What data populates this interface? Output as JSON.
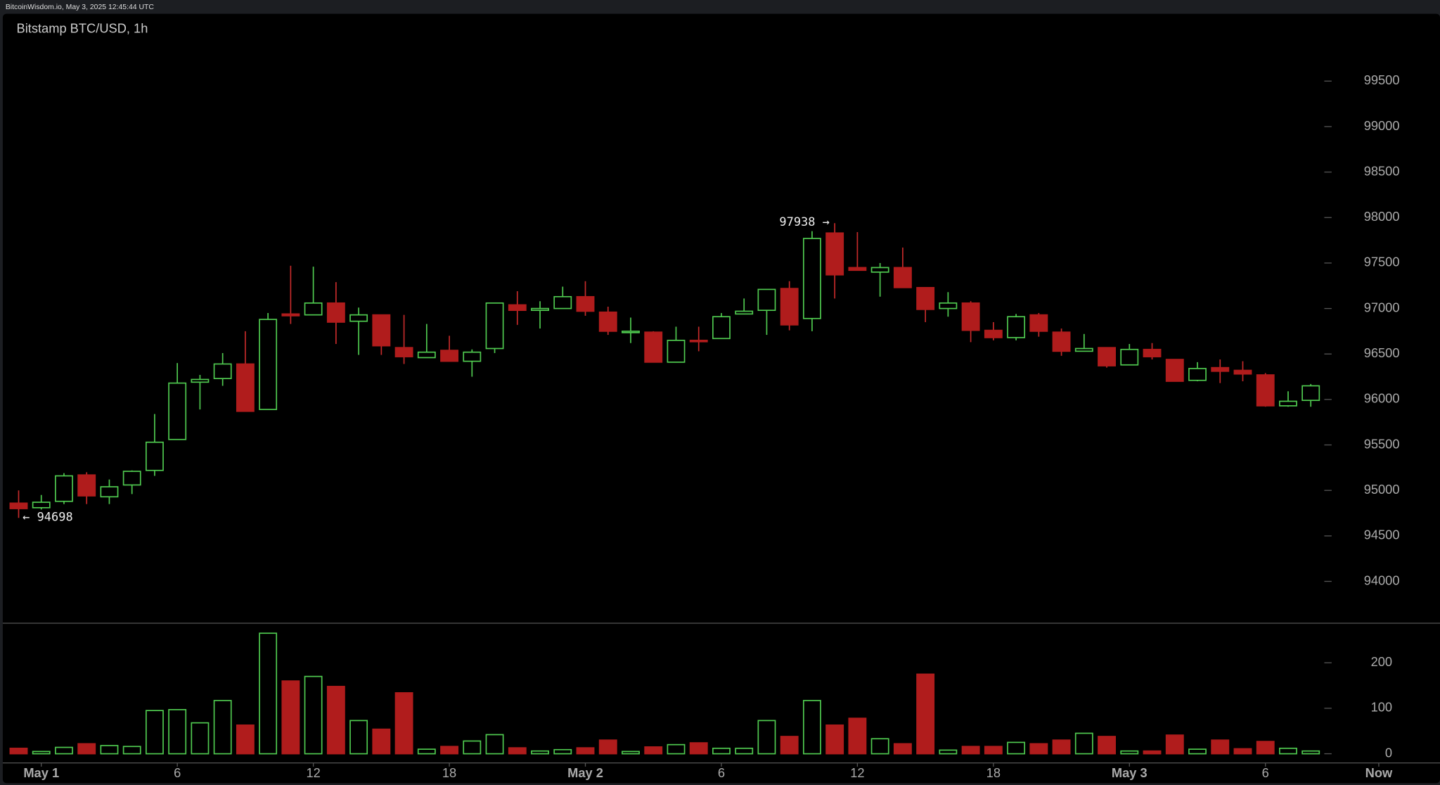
{
  "header": "BitcoinWisdom.io, May 3, 2025 12:45:44 UTC",
  "chart_data": {
    "type": "candlestick",
    "title": "Bitstamp BTC/USD, 1h",
    "up_color": "#4fc94f",
    "down_color": "#b01c1c",
    "annotations": [
      "97938 →",
      "← 94698"
    ],
    "x": [
      -1,
      0,
      1,
      2,
      3,
      4,
      5,
      6,
      7,
      8,
      9,
      10,
      11,
      12,
      13,
      14,
      15,
      16,
      17,
      18,
      19,
      20,
      21,
      22,
      23,
      24,
      25,
      26,
      27,
      28,
      29,
      30,
      31,
      32,
      33,
      34,
      35,
      36,
      37,
      38,
      39,
      40,
      41,
      42,
      43,
      44,
      45,
      46,
      47,
      48,
      49,
      50,
      51,
      52,
      53,
      54,
      55,
      56
    ],
    "open": [
      94860,
      94810,
      94880,
      95170,
      94930,
      95060,
      95220,
      95560,
      96190,
      96230,
      96390,
      95890,
      96940,
      96930,
      97060,
      96860,
      96930,
      96570,
      96460,
      96540,
      96420,
      96560,
      97040,
      96980,
      97000,
      97130,
      96960,
      96740,
      96740,
      96410,
      96650,
      96670,
      96940,
      96980,
      97220,
      96890,
      97830,
      97450,
      97400,
      97450,
      97230,
      97000,
      97060,
      96760,
      96680,
      96930,
      96740,
      96530,
      96570,
      96380,
      96550,
      96440,
      96210,
      96350,
      96320,
      96270,
      95930,
      95990
    ],
    "high": [
      95000,
      94950,
      95190,
      95200,
      95120,
      95220,
      95840,
      96400,
      96270,
      96510,
      96750,
      96950,
      97470,
      97460,
      97290,
      97010,
      96930,
      96930,
      96830,
      96700,
      96550,
      97060,
      97190,
      97080,
      97240,
      97300,
      97020,
      96900,
      96750,
      96800,
      96800,
      96950,
      97110,
      97210,
      97300,
      97850,
      97938,
      97840,
      97500,
      97670,
      97230,
      97180,
      97080,
      96850,
      96940,
      96950,
      96780,
      96720,
      96570,
      96610,
      96620,
      96440,
      96410,
      96440,
      96420,
      96290,
      96090,
      96170
    ],
    "low": [
      94698,
      94790,
      94850,
      94850,
      94850,
      94960,
      95160,
      95560,
      95890,
      96150,
      95870,
      95890,
      96830,
      96930,
      96610,
      96490,
      96490,
      96390,
      96460,
      96420,
      96250,
      96510,
      96820,
      96780,
      97000,
      96920,
      96710,
      96620,
      96410,
      96410,
      96530,
      96670,
      96940,
      96710,
      96760,
      96750,
      97110,
      97420,
      97130,
      97230,
      96850,
      96910,
      96630,
      96650,
      96650,
      96690,
      96480,
      96530,
      96350,
      96380,
      96440,
      96200,
      96200,
      96180,
      96200,
      95920,
      95920,
      95920
    ],
    "close": [
      94800,
      94870,
      95160,
      94940,
      95040,
      95210,
      95530,
      96180,
      96220,
      96390,
      95870,
      96880,
      96920,
      97060,
      96850,
      96930,
      96590,
      96470,
      96520,
      96420,
      96520,
      97060,
      96980,
      97000,
      97130,
      96970,
      96750,
      96750,
      96410,
      96650,
      96640,
      96910,
      96970,
      97210,
      96820,
      97770,
      97370,
      97420,
      97450,
      97230,
      96990,
      97060,
      96760,
      96680,
      96910,
      96750,
      96530,
      96560,
      96370,
      96550,
      96470,
      96200,
      96340,
      96310,
      96280,
      95930,
      95980,
      96150
    ],
    "volume": [
      12,
      5,
      14,
      22,
      18,
      16,
      95,
      97,
      68,
      117,
      63,
      265,
      160,
      170,
      148,
      73,
      54,
      134,
      10,
      16,
      28,
      42,
      13,
      6,
      9,
      13,
      30,
      5,
      15,
      20,
      24,
      12,
      12,
      73,
      38,
      117,
      63,
      78,
      33,
      22,
      175,
      8,
      16,
      16,
      25,
      22,
      30,
      45,
      38,
      6,
      6,
      41,
      10,
      30,
      11,
      27,
      12,
      6
    ],
    "xlim": [
      -1.7,
      61.7
    ],
    "xticks": [
      {
        "value": 0,
        "label": "May 1"
      },
      6,
      12,
      18,
      {
        "value": 24,
        "label": "May 2"
      },
      {
        "value": 30,
        "label": "6"
      },
      {
        "value": 36,
        "label": "12"
      },
      {
        "value": 42,
        "label": "18"
      },
      {
        "value": 48,
        "label": "May 3"
      },
      {
        "value": 54,
        "label": "6"
      },
      {
        "value": 59,
        "label": "Now"
      }
    ],
    "ylim": [
      93540,
      100240
    ],
    "yticks": [
      94000,
      94500,
      95000,
      95500,
      96000,
      96500,
      97000,
      97500,
      98000,
      98500,
      99000,
      99500
    ],
    "volume_ylim": [
      0,
      287
    ],
    "volume_yticks": [
      0,
      100,
      200
    ]
  }
}
